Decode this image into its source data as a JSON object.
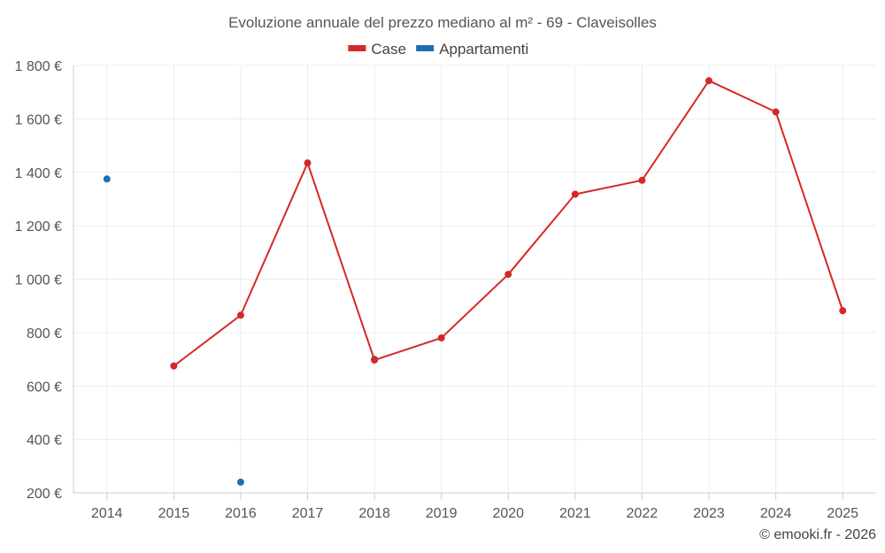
{
  "chart_data": {
    "type": "line",
    "title": "Evoluzione annuale del prezzo mediano al m² - 69 - Claveisolles",
    "x": [
      "2014",
      "2015",
      "2016",
      "2017",
      "2018",
      "2019",
      "2020",
      "2021",
      "2022",
      "2023",
      "2024",
      "2025"
    ],
    "series": [
      {
        "name": "Case",
        "color": "#d62728",
        "values": [
          null,
          675,
          865,
          1435,
          697,
          780,
          1018,
          1318,
          1370,
          1743,
          1626,
          882
        ]
      },
      {
        "name": "Appartamenti",
        "color": "#1f6fb0",
        "values": [
          1375,
          null,
          240,
          null,
          700,
          null,
          null,
          null,
          null,
          null,
          null,
          null
        ]
      }
    ],
    "ylim": [
      200,
      1800
    ],
    "yticks": [
      200,
      400,
      600,
      800,
      1000,
      1200,
      1400,
      1600,
      1800
    ],
    "ytick_labels": [
      "200 €",
      "400 €",
      "600 €",
      "800 €",
      "1 000 €",
      "1 200 €",
      "1 400 €",
      "1 600 €",
      "1 800 €"
    ],
    "xlabel": "",
    "ylabel": "",
    "grid": true,
    "legend": "top-center"
  },
  "credit": "© emooki.fr - 2026"
}
